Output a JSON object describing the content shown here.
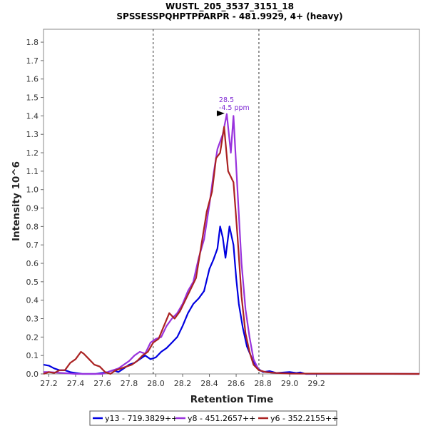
{
  "chart_data": {
    "type": "line",
    "title": "WUSTL_205_3537_3151_18",
    "subtitle": "SPSSESSPQHPTPPARPR - 481.9929, 4+ (heavy)",
    "xlabel": "Retention Time",
    "ylabel": "Intensity 10^6",
    "xlim": [
      27.16,
      29.97
    ],
    "ylim": [
      0,
      1.87
    ],
    "x_ticks": [
      "27.2",
      "27.4",
      "27.6",
      "27.8",
      "28.0",
      "28.2",
      "28.4",
      "28.6",
      "28.8",
      "29.0",
      "29.2"
    ],
    "y_ticks": [
      "0.0",
      "0.1",
      "0.2",
      "0.3",
      "0.4",
      "0.5",
      "0.6",
      "0.7",
      "0.8",
      "0.9",
      "1.0",
      "1.1",
      "1.2",
      "1.3",
      "1.4",
      "1.5",
      "1.6",
      "1.7",
      "1.8"
    ],
    "grid": false,
    "legend_position": "bottom",
    "integration_bounds": [
      27.98,
      28.77
    ],
    "annotation": {
      "x": 28.53,
      "y": 1.41,
      "line1": "28.5",
      "line2": "-4.5 ppm",
      "color": "#7f2ad4"
    },
    "series": [
      {
        "name": "y13 - 719.3829++",
        "color": "#0000e0",
        "points": [
          [
            27.16,
            0.05
          ],
          [
            27.2,
            0.045
          ],
          [
            27.24,
            0.03
          ],
          [
            27.28,
            0.02
          ],
          [
            27.32,
            0.02
          ],
          [
            27.36,
            0.01
          ],
          [
            27.4,
            0.005
          ],
          [
            27.45,
            0
          ],
          [
            27.5,
            0
          ],
          [
            27.55,
            0
          ],
          [
            27.6,
            0.005
          ],
          [
            27.64,
            0.01
          ],
          [
            27.68,
            0.02
          ],
          [
            27.72,
            0.01
          ],
          [
            27.76,
            0.03
          ],
          [
            27.8,
            0.05
          ],
          [
            27.84,
            0.06
          ],
          [
            27.88,
            0.08
          ],
          [
            27.92,
            0.1
          ],
          [
            27.96,
            0.08
          ],
          [
            28.0,
            0.09
          ],
          [
            28.04,
            0.12
          ],
          [
            28.08,
            0.14
          ],
          [
            28.12,
            0.17
          ],
          [
            28.16,
            0.2
          ],
          [
            28.2,
            0.26
          ],
          [
            28.24,
            0.33
          ],
          [
            28.28,
            0.38
          ],
          [
            28.32,
            0.41
          ],
          [
            28.36,
            0.45
          ],
          [
            28.4,
            0.57
          ],
          [
            28.43,
            0.62
          ],
          [
            28.46,
            0.68
          ],
          [
            28.48,
            0.8
          ],
          [
            28.5,
            0.74
          ],
          [
            28.52,
            0.63
          ],
          [
            28.55,
            0.8
          ],
          [
            28.58,
            0.7
          ],
          [
            28.6,
            0.52
          ],
          [
            28.62,
            0.38
          ],
          [
            28.65,
            0.25
          ],
          [
            28.68,
            0.15
          ],
          [
            28.72,
            0.08
          ],
          [
            28.76,
            0.03
          ],
          [
            28.8,
            0.01
          ],
          [
            28.85,
            0.015
          ],
          [
            28.9,
            0.005
          ],
          [
            29.0,
            0.01
          ],
          [
            29.05,
            0.005
          ],
          [
            29.08,
            0.008
          ],
          [
            29.12,
            0
          ],
          [
            29.97,
            0
          ]
        ]
      },
      {
        "name": "y8 - 451.2657++",
        "color": "#9933dd",
        "points": [
          [
            27.16,
            0.01
          ],
          [
            27.2,
            0.01
          ],
          [
            27.3,
            0.005
          ],
          [
            27.4,
            0
          ],
          [
            27.6,
            0
          ],
          [
            27.68,
            0.02
          ],
          [
            27.72,
            0.03
          ],
          [
            27.76,
            0.05
          ],
          [
            27.8,
            0.07
          ],
          [
            27.84,
            0.1
          ],
          [
            27.88,
            0.12
          ],
          [
            27.92,
            0.11
          ],
          [
            27.96,
            0.17
          ],
          [
            28.0,
            0.19
          ],
          [
            28.04,
            0.2
          ],
          [
            28.08,
            0.26
          ],
          [
            28.12,
            0.3
          ],
          [
            28.16,
            0.33
          ],
          [
            28.2,
            0.38
          ],
          [
            28.24,
            0.45
          ],
          [
            28.28,
            0.5
          ],
          [
            28.32,
            0.63
          ],
          [
            28.36,
            0.73
          ],
          [
            28.4,
            0.92
          ],
          [
            28.43,
            1.08
          ],
          [
            28.46,
            1.22
          ],
          [
            28.5,
            1.3
          ],
          [
            28.53,
            1.41
          ],
          [
            28.56,
            1.2
          ],
          [
            28.58,
            1.4
          ],
          [
            28.61,
            1.0
          ],
          [
            28.64,
            0.6
          ],
          [
            28.67,
            0.35
          ],
          [
            28.7,
            0.2
          ],
          [
            28.73,
            0.08
          ],
          [
            28.77,
            0.02
          ],
          [
            28.82,
            0.01
          ],
          [
            28.9,
            0.005
          ],
          [
            29.0,
            0.002
          ],
          [
            29.97,
            0
          ]
        ]
      },
      {
        "name": "y6 - 352.2155++",
        "color": "#aa2222",
        "points": [
          [
            27.16,
            0
          ],
          [
            27.2,
            0.01
          ],
          [
            27.24,
            0.005
          ],
          [
            27.28,
            0.02
          ],
          [
            27.32,
            0.02
          ],
          [
            27.36,
            0.06
          ],
          [
            27.4,
            0.08
          ],
          [
            27.44,
            0.12
          ],
          [
            27.46,
            0.11
          ],
          [
            27.5,
            0.08
          ],
          [
            27.54,
            0.05
          ],
          [
            27.58,
            0.04
          ],
          [
            27.62,
            0.01
          ],
          [
            27.66,
            0
          ],
          [
            27.7,
            0.02
          ],
          [
            27.74,
            0.03
          ],
          [
            27.78,
            0.04
          ],
          [
            27.82,
            0.05
          ],
          [
            27.86,
            0.07
          ],
          [
            27.9,
            0.1
          ],
          [
            27.94,
            0.12
          ],
          [
            27.98,
            0.17
          ],
          [
            28.02,
            0.19
          ],
          [
            28.06,
            0.26
          ],
          [
            28.1,
            0.33
          ],
          [
            28.14,
            0.3
          ],
          [
            28.18,
            0.34
          ],
          [
            28.22,
            0.4
          ],
          [
            28.26,
            0.46
          ],
          [
            28.3,
            0.52
          ],
          [
            28.34,
            0.7
          ],
          [
            28.38,
            0.88
          ],
          [
            28.42,
            0.99
          ],
          [
            28.45,
            1.17
          ],
          [
            28.48,
            1.2
          ],
          [
            28.51,
            1.34
          ],
          [
            28.54,
            1.1
          ],
          [
            28.58,
            1.04
          ],
          [
            28.61,
            0.75
          ],
          [
            28.64,
            0.42
          ],
          [
            28.67,
            0.22
          ],
          [
            28.7,
            0.12
          ],
          [
            28.73,
            0.05
          ],
          [
            28.77,
            0.02
          ],
          [
            28.82,
            0.01
          ],
          [
            28.9,
            0.005
          ],
          [
            29.0,
            0.002
          ],
          [
            29.97,
            0
          ]
        ]
      }
    ]
  }
}
